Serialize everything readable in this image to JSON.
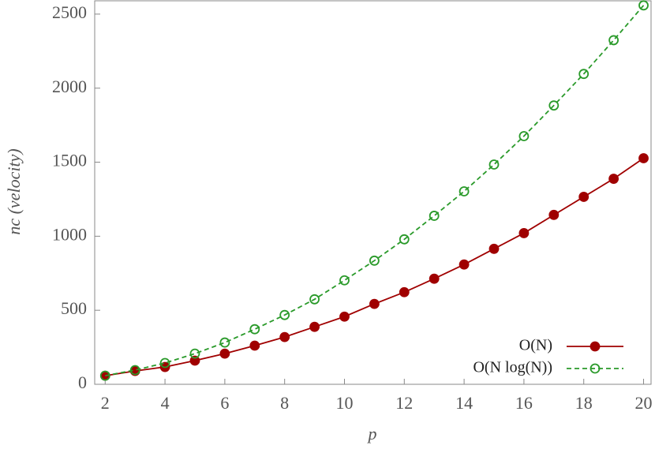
{
  "chart_data": {
    "type": "line",
    "x_label": "p",
    "y_label": "nc (velocity)",
    "x": [
      2,
      3,
      4,
      5,
      6,
      7,
      8,
      9,
      10,
      11,
      12,
      13,
      14,
      15,
      16,
      17,
      18,
      19,
      20
    ],
    "series": [
      {
        "name": "O(N)",
        "color": "#a00000",
        "marker": "filled",
        "dash": false,
        "values": [
          58,
          90,
          117,
          160,
          207,
          261,
          319,
          388,
          457,
          543,
          622,
          713,
          809,
          915,
          1021,
          1144,
          1266,
          1388,
          1527
        ]
      },
      {
        "name": "O(N log(N))",
        "color": "#2a9a2a",
        "marker": "open",
        "dash": true,
        "values": [
          58,
          96,
          144,
          207,
          282,
          372,
          468,
          574,
          702,
          835,
          979,
          1138,
          1303,
          1484,
          1676,
          1883,
          2096,
          2324,
          2559
        ]
      }
    ],
    "xlim": [
      1.65,
      20.25
    ],
    "ylim": [
      0,
      2590
    ],
    "xticks": [
      2,
      4,
      6,
      8,
      10,
      12,
      14,
      16,
      18,
      20
    ],
    "yticks": [
      0,
      500,
      1000,
      1500,
      2000,
      2500
    ],
    "legend": "bottom-right"
  }
}
